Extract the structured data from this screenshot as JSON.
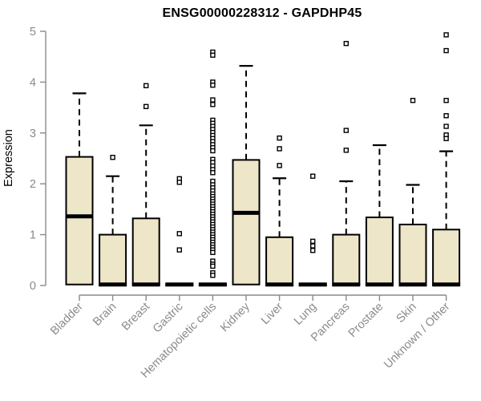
{
  "colors": {
    "background": "#ffffff",
    "box_fill": "#EDE6C9",
    "box_stroke": "#000000",
    "axis": "#8a8a8a",
    "title_text": "#000000",
    "outlier_fill": "#ffffff"
  },
  "chart_data": {
    "type": "boxplot",
    "title": "ENSG00000228312 - GAPDHP45",
    "ylabel": "Expression",
    "xlabel": "",
    "ylim": [
      0,
      5
    ],
    "yticks": [
      0,
      1,
      2,
      3,
      4,
      5
    ],
    "grid": false,
    "legend": "none",
    "categories": [
      "Bladder",
      "Brain",
      "Breast",
      "Gastric",
      "Hematopoietic cells",
      "Kidney",
      "Liver",
      "Lung",
      "Pancreas",
      "Prostate",
      "Skin",
      "Unknown / Other"
    ],
    "series": [
      {
        "name": "Bladder",
        "q1": 0.02,
        "median": 1.36,
        "q3": 2.53,
        "whisker_low": 0.02,
        "whisker_high": 3.78,
        "outliers": []
      },
      {
        "name": "Brain",
        "q1": 0.02,
        "median": 0.02,
        "q3": 1.0,
        "whisker_low": 0.02,
        "whisker_high": 2.15,
        "outliers": [
          2.52
        ]
      },
      {
        "name": "Breast",
        "q1": 0.02,
        "median": 0.02,
        "q3": 1.32,
        "whisker_low": 0.02,
        "whisker_high": 3.15,
        "outliers": [
          3.93,
          3.52
        ]
      },
      {
        "name": "Gastric",
        "q1": 0.0,
        "median": 0.02,
        "q3": 0.03,
        "whisker_low": 0.0,
        "whisker_high": 0.03,
        "outliers": [
          2.1,
          2.03,
          1.02,
          0.7
        ]
      },
      {
        "name": "Hematopoietic cells",
        "q1": 0.0,
        "median": 0.02,
        "q3": 0.03,
        "whisker_low": 0.0,
        "whisker_high": 0.03,
        "outliers": [
          4.59,
          4.53,
          4.0,
          3.94,
          3.65,
          3.56,
          3.25,
          3.19,
          3.13,
          3.07,
          3.01,
          2.95,
          2.89,
          2.83,
          2.77,
          2.71,
          2.65,
          2.48,
          2.42,
          2.35,
          2.28,
          2.22,
          2.05,
          1.98,
          1.92,
          1.86,
          1.8,
          1.75,
          1.7,
          1.65,
          1.6,
          1.55,
          1.5,
          1.45,
          1.4,
          1.35,
          1.3,
          1.25,
          1.2,
          1.15,
          1.1,
          1.05,
          1.0,
          0.95,
          0.9,
          0.85,
          0.8,
          0.75,
          0.7,
          0.65,
          0.48,
          0.42,
          0.38,
          0.25,
          0.2
        ]
      },
      {
        "name": "Kidney",
        "q1": 0.02,
        "median": 1.43,
        "q3": 2.47,
        "whisker_low": 0.02,
        "whisker_high": 4.32,
        "outliers": []
      },
      {
        "name": "Liver",
        "q1": 0.02,
        "median": 0.02,
        "q3": 0.95,
        "whisker_low": 0.02,
        "whisker_high": 2.11,
        "outliers": [
          2.9,
          2.69,
          2.36
        ]
      },
      {
        "name": "Lung",
        "q1": 0.0,
        "median": 0.02,
        "q3": 0.03,
        "whisker_low": 0.0,
        "whisker_high": 0.03,
        "outliers": [
          2.15,
          0.87,
          0.78,
          0.69
        ]
      },
      {
        "name": "Pancreas",
        "q1": 0.02,
        "median": 0.02,
        "q3": 1.0,
        "whisker_low": 0.02,
        "whisker_high": 2.05,
        "outliers": [
          4.76,
          3.05,
          2.66
        ]
      },
      {
        "name": "Prostate",
        "q1": 0.02,
        "median": 0.02,
        "q3": 1.34,
        "whisker_low": 0.02,
        "whisker_high": 2.76,
        "outliers": []
      },
      {
        "name": "Skin",
        "q1": 0.02,
        "median": 0.02,
        "q3": 1.2,
        "whisker_low": 0.02,
        "whisker_high": 1.98,
        "outliers": [
          3.64
        ]
      },
      {
        "name": "Unknown / Other",
        "q1": 0.02,
        "median": 0.02,
        "q3": 1.1,
        "whisker_low": 0.02,
        "whisker_high": 2.64,
        "outliers": [
          4.93,
          4.62,
          3.64,
          3.34,
          3.13,
          2.96,
          2.89
        ]
      }
    ]
  }
}
